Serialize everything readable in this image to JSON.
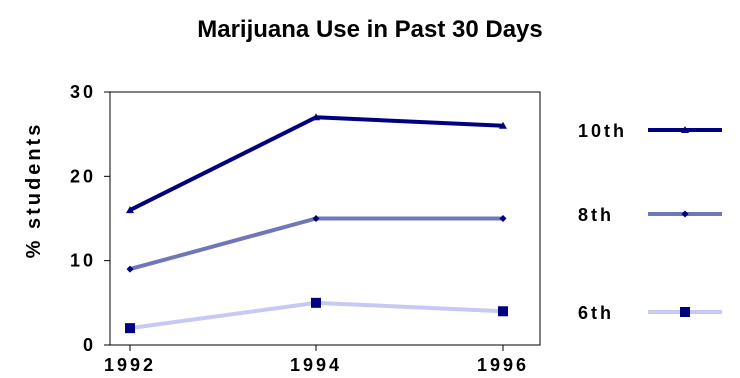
{
  "chart_data": {
    "type": "line",
    "title": "Marijuana Use in Past 30 Days",
    "xlabel": "",
    "ylabel": "% students",
    "x": [
      "1992",
      "1994",
      "1996"
    ],
    "yticks": [
      "0",
      "10",
      "20",
      "30"
    ],
    "ylim": [
      0,
      30
    ],
    "grid": false,
    "legend_position": "right",
    "series": [
      {
        "name": "10th",
        "values": [
          16,
          27,
          26
        ],
        "color": "#000080",
        "marker": "triangle"
      },
      {
        "name": "8th",
        "values": [
          9,
          15,
          15
        ],
        "color": "#6f77b9",
        "marker": "diamond"
      },
      {
        "name": "6th",
        "values": [
          2,
          5,
          4
        ],
        "color": "#c7c9f4",
        "marker": "square"
      }
    ],
    "marker_color": "#000080"
  }
}
